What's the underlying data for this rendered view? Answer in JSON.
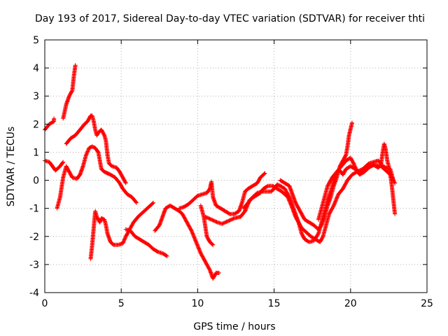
{
  "chart_data": {
    "type": "scatter",
    "title": "Day 193 of 2017, Sidereal Day-to-day VTEC variation (SDTVAR) for receiver thti",
    "xlabel": "GPS time / hours",
    "ylabel": "SDTVAR / TECUs",
    "xlim": [
      0,
      25
    ],
    "ylim": [
      -4,
      5
    ],
    "xticks": [
      0,
      5,
      10,
      15,
      20,
      25
    ],
    "yticks": [
      -4,
      -3,
      -2,
      -1,
      0,
      1,
      2,
      3,
      4,
      5
    ],
    "grid": true,
    "legend": "none",
    "marker": "+",
    "series": [
      {
        "name": "SDTVAR",
        "color": "#ff0000",
        "segments": [
          [
            [
              0.0,
              1.8
            ],
            [
              0.3,
              2.0
            ],
            [
              0.6,
              2.1
            ],
            [
              0.6,
              2.2
            ]
          ],
          [
            [
              0.0,
              0.7
            ],
            [
              0.3,
              0.65
            ],
            [
              0.5,
              0.5
            ],
            [
              0.7,
              0.35
            ],
            [
              1.0,
              0.5
            ],
            [
              1.2,
              0.65
            ]
          ],
          [
            [
              0.8,
              -1.0
            ],
            [
              1.0,
              -0.6
            ],
            [
              1.2,
              0.1
            ],
            [
              1.4,
              0.5
            ],
            [
              1.6,
              0.3
            ],
            [
              1.8,
              0.1
            ],
            [
              2.1,
              0.05
            ],
            [
              2.3,
              0.2
            ],
            [
              2.5,
              0.5
            ],
            [
              2.7,
              0.9
            ],
            [
              2.9,
              1.15
            ],
            [
              3.1,
              1.2
            ],
            [
              3.3,
              1.15
            ],
            [
              3.5,
              1.0
            ],
            [
              3.6,
              0.7
            ],
            [
              3.7,
              0.4
            ],
            [
              3.9,
              0.3
            ],
            [
              4.1,
              0.25
            ],
            [
              4.3,
              0.2
            ],
            [
              4.6,
              0.1
            ],
            [
              4.9,
              -0.1
            ],
            [
              5.1,
              -0.3
            ],
            [
              5.4,
              -0.5
            ],
            [
              5.7,
              -0.6
            ],
            [
              6.0,
              -0.8
            ]
          ],
          [
            [
              1.2,
              2.2
            ],
            [
              1.4,
              2.7
            ],
            [
              1.6,
              3.0
            ],
            [
              1.8,
              3.2
            ],
            [
              1.9,
              3.7
            ],
            [
              2.0,
              4.1
            ]
          ],
          [
            [
              1.4,
              1.3
            ],
            [
              1.7,
              1.5
            ],
            [
              2.0,
              1.6
            ],
            [
              2.3,
              1.8
            ],
            [
              2.6,
              2.0
            ],
            [
              2.8,
              2.1
            ],
            [
              3.0,
              2.3
            ],
            [
              3.1,
              2.3
            ],
            [
              3.2,
              2.1
            ],
            [
              3.3,
              1.8
            ],
            [
              3.4,
              1.6
            ],
            [
              3.5,
              1.7
            ],
            [
              3.7,
              1.8
            ],
            [
              3.9,
              1.6
            ],
            [
              4.0,
              1.4
            ],
            [
              4.1,
              0.9
            ],
            [
              4.2,
              0.6
            ],
            [
              4.4,
              0.5
            ],
            [
              4.7,
              0.45
            ],
            [
              4.9,
              0.3
            ],
            [
              5.1,
              0.1
            ],
            [
              5.3,
              -0.1
            ]
          ],
          [
            [
              3.0,
              -2.8
            ],
            [
              3.1,
              -2.3
            ],
            [
              3.2,
              -1.7
            ],
            [
              3.3,
              -1.1
            ],
            [
              3.4,
              -1.3
            ],
            [
              3.6,
              -1.5
            ],
            [
              3.7,
              -1.35
            ],
            [
              3.9,
              -1.4
            ],
            [
              4.0,
              -1.6
            ],
            [
              4.1,
              -1.9
            ],
            [
              4.3,
              -2.2
            ],
            [
              4.5,
              -2.3
            ],
            [
              4.8,
              -2.3
            ],
            [
              5.1,
              -2.25
            ],
            [
              5.3,
              -2.0
            ],
            [
              5.5,
              -1.8
            ],
            [
              5.8,
              -1.5
            ],
            [
              6.1,
              -1.3
            ],
            [
              6.5,
              -1.1
            ],
            [
              6.8,
              -0.95
            ],
            [
              7.1,
              -0.8
            ]
          ],
          [
            [
              5.3,
              -1.75
            ],
            [
              5.6,
              -1.8
            ],
            [
              5.9,
              -2.0
            ],
            [
              6.2,
              -2.1
            ],
            [
              6.5,
              -2.2
            ],
            [
              6.8,
              -2.3
            ],
            [
              7.1,
              -2.45
            ],
            [
              7.4,
              -2.55
            ],
            [
              7.7,
              -2.6
            ],
            [
              8.0,
              -2.7
            ]
          ],
          [
            [
              7.2,
              -1.8
            ],
            [
              7.5,
              -1.6
            ],
            [
              7.7,
              -1.3
            ],
            [
              7.9,
              -1.0
            ],
            [
              8.2,
              -0.9
            ],
            [
              8.5,
              -1.0
            ],
            [
              8.8,
              -1.1
            ],
            [
              9.0,
              -1.2
            ],
            [
              9.3,
              -1.5
            ],
            [
              9.6,
              -1.8
            ],
            [
              9.9,
              -2.2
            ],
            [
              10.2,
              -2.6
            ],
            [
              10.5,
              -2.9
            ],
            [
              10.8,
              -3.2
            ],
            [
              11.0,
              -3.5
            ],
            [
              11.2,
              -3.3
            ],
            [
              11.4,
              -3.3
            ]
          ],
          [
            [
              8.8,
              -1.0
            ],
            [
              9.1,
              -0.95
            ],
            [
              9.4,
              -0.85
            ],
            [
              9.7,
              -0.7
            ],
            [
              10.0,
              -0.55
            ],
            [
              10.3,
              -0.5
            ],
            [
              10.6,
              -0.45
            ],
            [
              10.8,
              -0.3
            ],
            [
              10.9,
              -0.05
            ],
            [
              11.0,
              -0.6
            ],
            [
              11.2,
              -0.9
            ],
            [
              11.5,
              -1.0
            ],
            [
              11.8,
              -1.1
            ],
            [
              12.1,
              -1.2
            ],
            [
              12.4,
              -1.2
            ],
            [
              12.7,
              -1.1
            ],
            [
              12.9,
              -0.8
            ],
            [
              13.1,
              -0.4
            ],
            [
              13.3,
              -0.3
            ],
            [
              13.6,
              -0.2
            ],
            [
              13.9,
              -0.1
            ],
            [
              14.1,
              0.1
            ],
            [
              14.4,
              0.25
            ]
          ],
          [
            [
              10.2,
              -0.9
            ],
            [
              10.4,
              -1.3
            ],
            [
              10.6,
              -2.0
            ],
            [
              10.8,
              -2.2
            ],
            [
              11.0,
              -2.3
            ]
          ],
          [
            [
              10.5,
              -1.3
            ],
            [
              10.9,
              -1.4
            ],
            [
              11.3,
              -1.5
            ],
            [
              11.6,
              -1.55
            ],
            [
              12.0,
              -1.45
            ],
            [
              12.4,
              -1.35
            ],
            [
              12.8,
              -1.3
            ],
            [
              13.1,
              -1.1
            ],
            [
              13.4,
              -0.7
            ],
            [
              13.8,
              -0.55
            ],
            [
              14.1,
              -0.45
            ],
            [
              14.3,
              -0.3
            ],
            [
              14.6,
              -0.2
            ],
            [
              14.9,
              -0.2
            ],
            [
              15.2,
              -0.3
            ],
            [
              15.5,
              -0.4
            ],
            [
              15.9,
              -0.6
            ],
            [
              16.2,
              -1.0
            ],
            [
              16.4,
              -1.3
            ],
            [
              16.6,
              -1.5
            ],
            [
              16.8,
              -1.7
            ],
            [
              17.1,
              -1.85
            ],
            [
              17.4,
              -2.0
            ],
            [
              17.7,
              -2.1
            ],
            [
              18.0,
              -2.2
            ],
            [
              18.2,
              -2.0
            ],
            [
              18.4,
              -1.6
            ],
            [
              18.6,
              -1.2
            ],
            [
              18.9,
              -0.9
            ],
            [
              19.2,
              -0.5
            ],
            [
              19.5,
              -0.3
            ],
            [
              19.8,
              0.0
            ],
            [
              20.1,
              0.2
            ],
            [
              20.4,
              0.3
            ],
            [
              20.8,
              0.4
            ],
            [
              21.2,
              0.5
            ],
            [
              21.6,
              0.55
            ],
            [
              22.0,
              0.5
            ],
            [
              22.3,
              0.35
            ],
            [
              22.6,
              0.2
            ],
            [
              22.9,
              -0.1
            ]
          ],
          [
            [
              13.0,
              -1.0
            ],
            [
              13.3,
              -0.8
            ],
            [
              13.6,
              -0.6
            ],
            [
              13.9,
              -0.45
            ],
            [
              14.2,
              -0.4
            ],
            [
              14.5,
              -0.4
            ],
            [
              14.8,
              -0.4
            ],
            [
              15.0,
              -0.3
            ],
            [
              15.2,
              -0.15
            ],
            [
              15.4,
              -0.2
            ],
            [
              15.7,
              -0.3
            ],
            [
              16.0,
              -0.6
            ],
            [
              16.2,
              -0.9
            ],
            [
              16.4,
              -1.2
            ],
            [
              16.6,
              -1.5
            ],
            [
              16.8,
              -1.9
            ],
            [
              17.0,
              -2.1
            ],
            [
              17.3,
              -2.2
            ],
            [
              17.6,
              -2.15
            ],
            [
              17.9,
              -1.9
            ],
            [
              18.1,
              -1.5
            ],
            [
              18.3,
              -1.1
            ],
            [
              18.5,
              -0.7
            ],
            [
              18.7,
              -0.4
            ],
            [
              18.9,
              0.0
            ],
            [
              19.1,
              0.3
            ],
            [
              19.3,
              0.35
            ],
            [
              19.5,
              0.2
            ],
            [
              19.7,
              0.4
            ],
            [
              20.0,
              0.5
            ],
            [
              20.3,
              0.4
            ],
            [
              20.6,
              0.3
            ],
            [
              20.9,
              0.45
            ],
            [
              21.2,
              0.6
            ],
            [
              21.5,
              0.65
            ],
            [
              21.8,
              0.7
            ],
            [
              22.0,
              0.6
            ],
            [
              22.1,
              1.0
            ],
            [
              22.2,
              1.3
            ],
            [
              22.3,
              1.1
            ],
            [
              22.4,
              0.7
            ],
            [
              22.5,
              0.5
            ],
            [
              22.6,
              0.2
            ],
            [
              22.7,
              -0.2
            ],
            [
              22.8,
              -0.7
            ],
            [
              22.9,
              -1.2
            ]
          ],
          [
            [
              15.4,
              0.0
            ],
            [
              15.7,
              -0.1
            ],
            [
              16.0,
              -0.2
            ],
            [
              16.2,
              -0.5
            ],
            [
              16.4,
              -0.8
            ],
            [
              16.6,
              -1.0
            ],
            [
              16.8,
              -1.2
            ],
            [
              17.0,
              -1.4
            ],
            [
              17.3,
              -1.5
            ],
            [
              17.6,
              -1.6
            ],
            [
              17.9,
              -1.75
            ],
            [
              18.1,
              -1.6
            ],
            [
              18.3,
              -1.3
            ],
            [
              18.5,
              -0.9
            ],
            [
              18.7,
              -0.6
            ],
            [
              18.9,
              -0.2
            ],
            [
              19.1,
              0.1
            ],
            [
              19.3,
              0.5
            ],
            [
              19.5,
              0.7
            ],
            [
              19.7,
              0.9
            ],
            [
              19.8,
              1.2
            ],
            [
              19.9,
              1.6
            ],
            [
              20.1,
              2.05
            ]
          ],
          [
            [
              17.9,
              -1.4
            ],
            [
              18.1,
              -1.0
            ],
            [
              18.3,
              -0.6
            ],
            [
              18.5,
              -0.2
            ],
            [
              18.8,
              0.1
            ],
            [
              19.1,
              0.3
            ],
            [
              19.4,
              0.5
            ],
            [
              19.7,
              0.7
            ],
            [
              20.0,
              0.8
            ],
            [
              20.2,
              0.6
            ],
            [
              20.4,
              0.35
            ],
            [
              20.6,
              0.2
            ],
            [
              20.9,
              0.3
            ],
            [
              21.2,
              0.45
            ],
            [
              21.5,
              0.55
            ],
            [
              21.8,
              0.45
            ],
            [
              22.0,
              0.55
            ],
            [
              22.3,
              0.45
            ],
            [
              22.6,
              0.4
            ],
            [
              22.8,
              0.0
            ]
          ]
        ]
      }
    ]
  }
}
